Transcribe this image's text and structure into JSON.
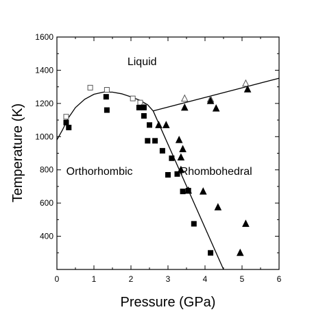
{
  "chart_data": {
    "type": "scatter",
    "title": "",
    "xlabel": "Pressure (GPa)",
    "ylabel": "Temperature (K)",
    "xlim": [
      0,
      6
    ],
    "ylim": [
      200,
      1600
    ],
    "xticks": [
      "0",
      "1",
      "2",
      "3",
      "4",
      "5",
      "6"
    ],
    "yticks": [
      "400",
      "600",
      "800",
      "1000",
      "1200",
      "1400",
      "1600"
    ],
    "grid": false,
    "regions": [
      {
        "label": "Liquid",
        "x": 2.3,
        "y": 1430
      },
      {
        "label": "Orthorhombic",
        "x": 1.15,
        "y": 770
      },
      {
        "label": "Rhombohedral",
        "x": 4.3,
        "y": 770
      }
    ],
    "series": [
      {
        "marker": "open-square",
        "points": [
          [
            0.25,
            1120
          ],
          [
            0.9,
            1295
          ],
          [
            1.35,
            1282
          ],
          [
            2.05,
            1230
          ],
          [
            2.25,
            1205
          ],
          [
            2.35,
            1180
          ]
        ]
      },
      {
        "marker": "filled-square",
        "points": [
          [
            0.25,
            1085
          ],
          [
            0.32,
            1055
          ],
          [
            1.33,
            1240
          ],
          [
            1.35,
            1160
          ],
          [
            2.22,
            1175
          ],
          [
            2.35,
            1175
          ],
          [
            2.35,
            1125
          ],
          [
            2.5,
            1070
          ],
          [
            2.45,
            975
          ],
          [
            2.65,
            975
          ],
          [
            2.85,
            915
          ],
          [
            3.1,
            870
          ],
          [
            3.0,
            770
          ],
          [
            3.25,
            775
          ],
          [
            3.4,
            670
          ],
          [
            3.55,
            675
          ],
          [
            3.7,
            475
          ],
          [
            4.15,
            300
          ]
        ]
      },
      {
        "marker": "open-triangle",
        "points": [
          [
            3.45,
            1230
          ],
          [
            4.15,
            1225
          ],
          [
            5.1,
            1320
          ]
        ]
      },
      {
        "marker": "filled-triangle",
        "points": [
          [
            2.75,
            1070
          ],
          [
            2.95,
            1070
          ],
          [
            3.45,
            1175
          ],
          [
            4.15,
            1215
          ],
          [
            4.3,
            1170
          ],
          [
            5.15,
            1285
          ],
          [
            3.3,
            980
          ],
          [
            3.4,
            925
          ],
          [
            3.35,
            875
          ],
          [
            3.35,
            800
          ],
          [
            3.55,
            675
          ],
          [
            3.95,
            670
          ],
          [
            4.35,
            575
          ],
          [
            5.1,
            475
          ],
          [
            4.95,
            300
          ]
        ]
      }
    ],
    "lines": [
      {
        "name": "liquidus-orthorhombic",
        "points": [
          [
            0.0,
            980
          ],
          [
            0.15,
            1040
          ],
          [
            0.3,
            1110
          ],
          [
            0.5,
            1175
          ],
          [
            0.75,
            1225
          ],
          [
            1.0,
            1255
          ],
          [
            1.25,
            1268
          ],
          [
            1.5,
            1268
          ],
          [
            1.75,
            1258
          ],
          [
            2.0,
            1240
          ],
          [
            2.25,
            1218
          ],
          [
            2.45,
            1192
          ],
          [
            2.6,
            1155
          ]
        ]
      },
      {
        "name": "liquidus-rhombohedral",
        "points": [
          [
            2.6,
            1155
          ],
          [
            6.0,
            1352
          ]
        ]
      },
      {
        "name": "solid-solid-boundary",
        "points": [
          [
            2.6,
            1155
          ],
          [
            4.5,
            200
          ]
        ]
      }
    ]
  }
}
